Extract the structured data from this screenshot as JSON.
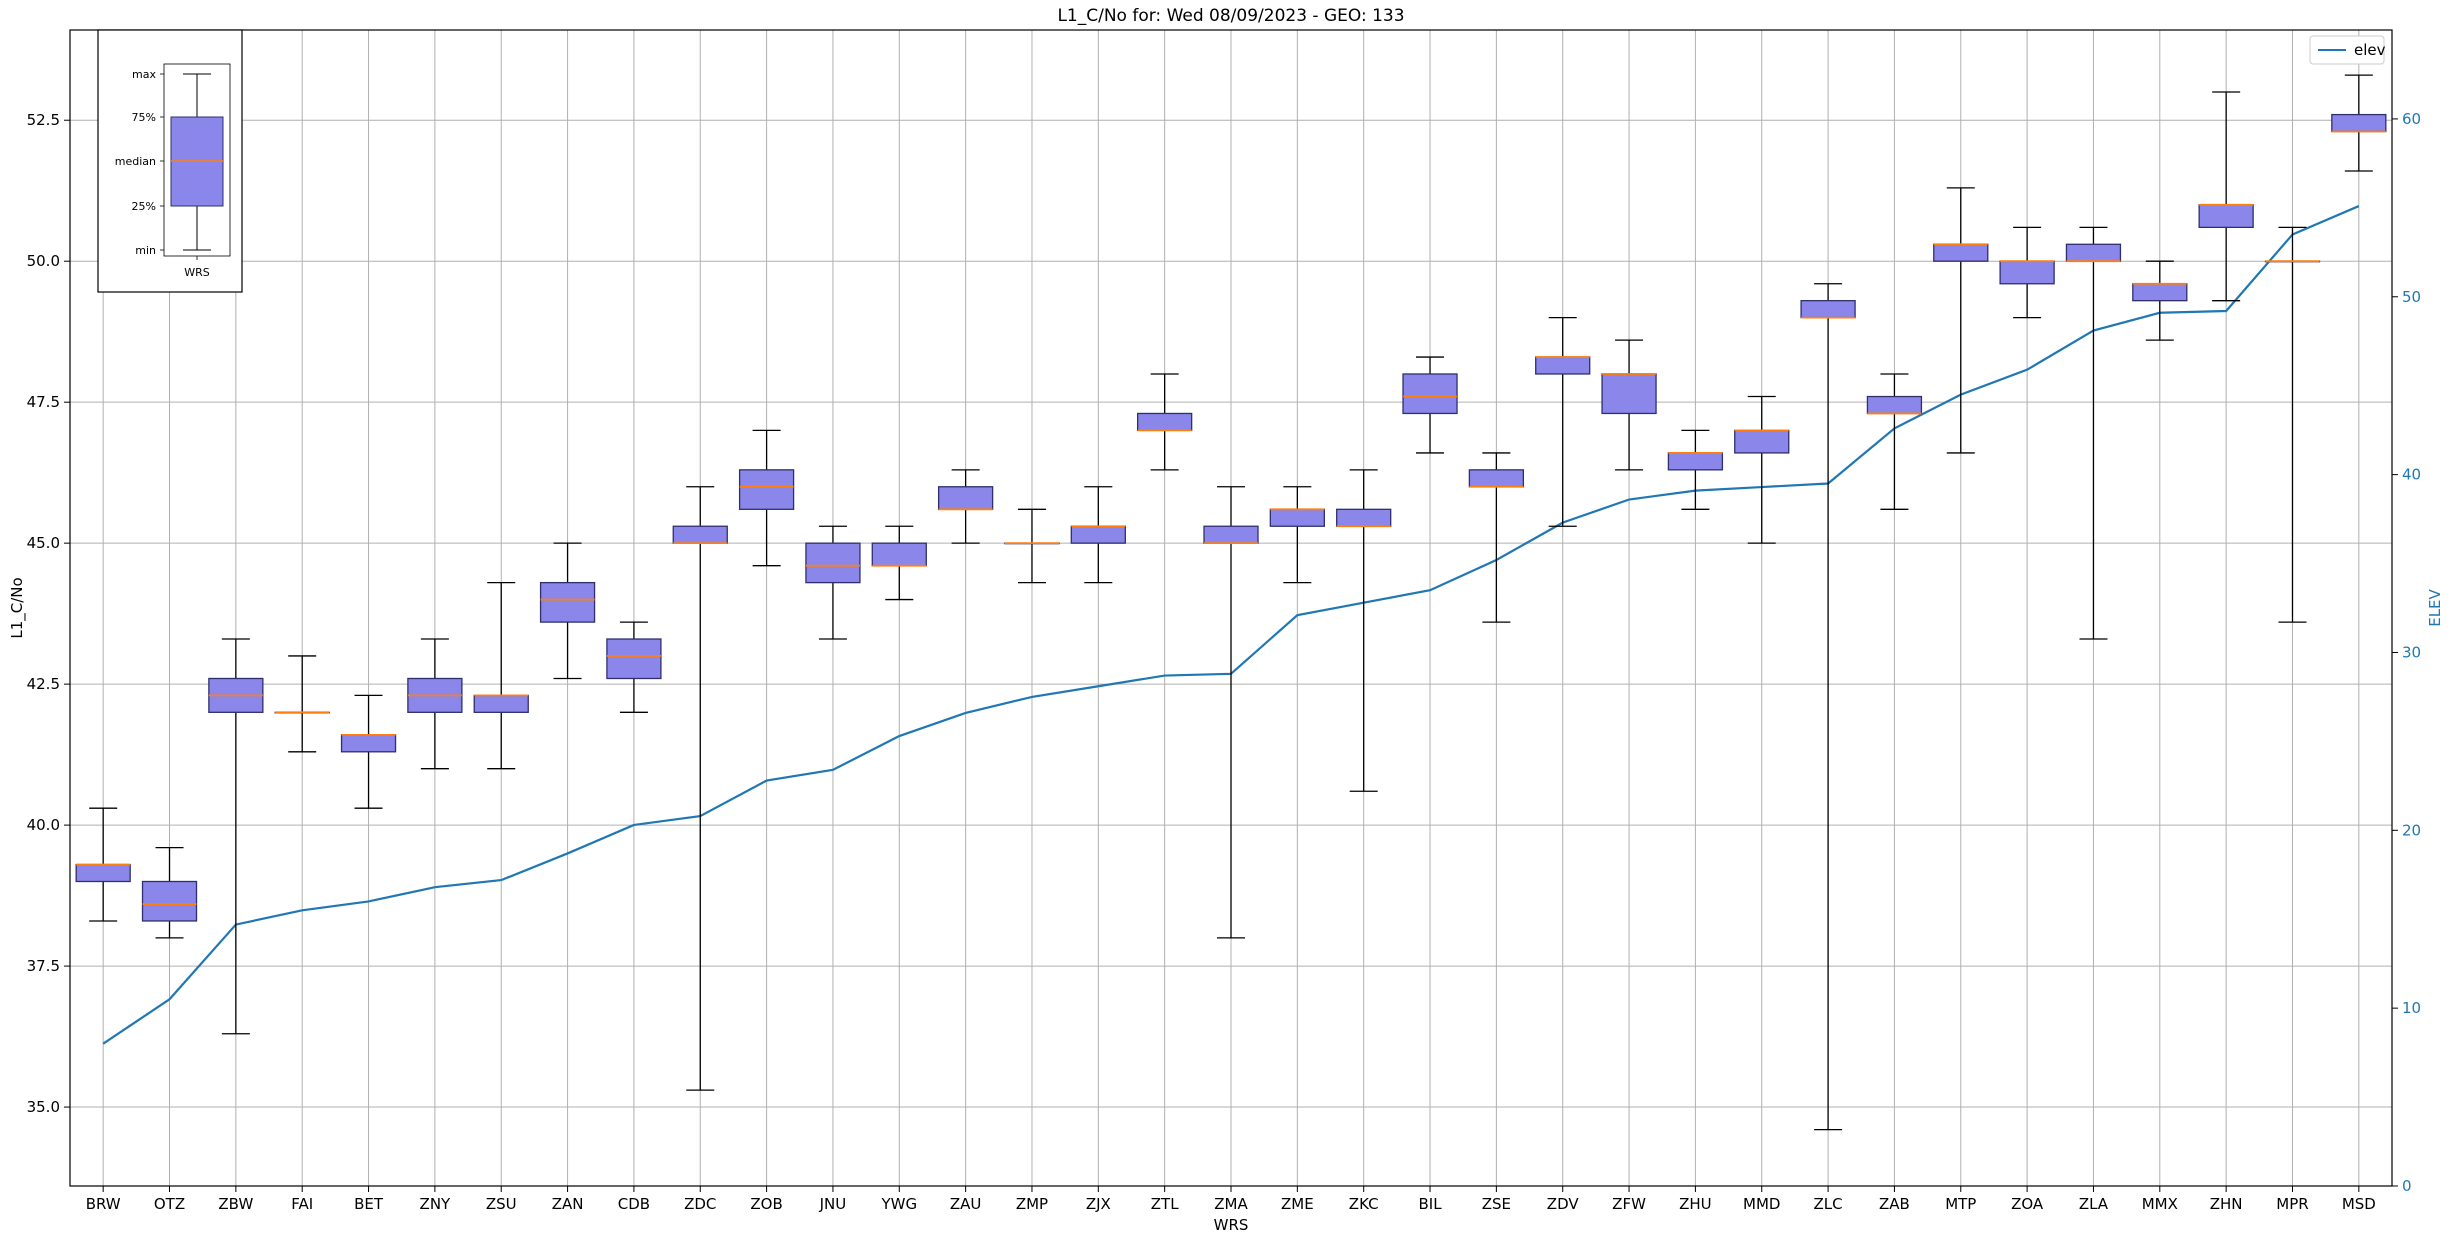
{
  "chart_data": {
    "type": "box",
    "title": "L1_C/No for: Wed 08/09/2023 - GEO: 133",
    "xlabel": "WRS",
    "ylabel": "L1_C/No",
    "y2label": "ELEV",
    "ylim": [
      33.6,
      54.1
    ],
    "y2lim": [
      0,
      65
    ],
    "yticks": [
      35.0,
      37.5,
      40.0,
      42.5,
      45.0,
      47.5,
      50.0,
      52.5
    ],
    "yticklabels": [
      "35.0",
      "37.5",
      "40.0",
      "42.5",
      "45.0",
      "47.5",
      "50.0",
      "52.5"
    ],
    "y2ticks": [
      0,
      10,
      20,
      30,
      40,
      50,
      60
    ],
    "y2ticklabels": [
      "0",
      "10",
      "20",
      "30",
      "40",
      "50",
      "60"
    ],
    "grid": true,
    "legend": {
      "position": "top-right",
      "entries": [
        "elev"
      ]
    },
    "colors": {
      "box_fill": "#8a86ea",
      "box_edge": "#2f2f6e",
      "median": "#ff7f0e",
      "elev_line": "#1f77b4",
      "grid": "#b0b0b0"
    },
    "categories": [
      "BRW",
      "OTZ",
      "ZBW",
      "FAI",
      "BET",
      "ZNY",
      "ZSU",
      "ZAN",
      "CDB",
      "ZDC",
      "ZOB",
      "JNU",
      "YWG",
      "ZAU",
      "ZMP",
      "ZJX",
      "ZTL",
      "ZMA",
      "ZME",
      "ZKC",
      "BIL",
      "ZSE",
      "ZDV",
      "ZFW",
      "ZHU",
      "MMD",
      "ZLC",
      "ZAB",
      "MTP",
      "ZOA",
      "ZLA",
      "MMX",
      "ZHN",
      "MPR",
      "MSD"
    ],
    "boxes": [
      {
        "min": 38.3,
        "q1": 39.0,
        "median": 39.3,
        "q3": 39.3,
        "max": 40.3
      },
      {
        "min": 38.0,
        "q1": 38.3,
        "median": 38.6,
        "q3": 39.0,
        "max": 39.6
      },
      {
        "min": 36.3,
        "q1": 42.0,
        "median": 42.3,
        "q3": 42.6,
        "max": 43.3
      },
      {
        "min": 41.3,
        "q1": 42.0,
        "median": 42.0,
        "q3": 42.0,
        "max": 43.0
      },
      {
        "min": 40.3,
        "q1": 41.3,
        "median": 41.6,
        "q3": 41.6,
        "max": 42.3
      },
      {
        "min": 41.0,
        "q1": 42.0,
        "median": 42.3,
        "q3": 42.6,
        "max": 43.3
      },
      {
        "min": 41.0,
        "q1": 42.0,
        "median": 42.3,
        "q3": 42.3,
        "max": 44.3
      },
      {
        "min": 42.6,
        "q1": 43.6,
        "median": 44.0,
        "q3": 44.3,
        "max": 45.0
      },
      {
        "min": 42.0,
        "q1": 42.6,
        "median": 43.0,
        "q3": 43.3,
        "max": 43.6
      },
      {
        "min": 35.3,
        "q1": 45.0,
        "median": 45.0,
        "q3": 45.3,
        "max": 46.0
      },
      {
        "min": 44.6,
        "q1": 45.6,
        "median": 46.0,
        "q3": 46.3,
        "max": 47.0
      },
      {
        "min": 43.3,
        "q1": 44.3,
        "median": 44.6,
        "q3": 45.0,
        "max": 45.3
      },
      {
        "min": 44.0,
        "q1": 44.6,
        "median": 44.6,
        "q3": 45.0,
        "max": 45.3
      },
      {
        "min": 45.0,
        "q1": 45.6,
        "median": 45.6,
        "q3": 46.0,
        "max": 46.3
      },
      {
        "min": 44.3,
        "q1": 45.0,
        "median": 45.0,
        "q3": 45.0,
        "max": 45.6
      },
      {
        "min": 44.3,
        "q1": 45.0,
        "median": 45.3,
        "q3": 45.3,
        "max": 46.0
      },
      {
        "min": 46.3,
        "q1": 47.0,
        "median": 47.0,
        "q3": 47.3,
        "max": 48.0
      },
      {
        "min": 38.0,
        "q1": 45.0,
        "median": 45.0,
        "q3": 45.3,
        "max": 46.0
      },
      {
        "min": 44.3,
        "q1": 45.3,
        "median": 45.6,
        "q3": 45.6,
        "max": 46.0
      },
      {
        "min": 40.6,
        "q1": 45.3,
        "median": 45.3,
        "q3": 45.6,
        "max": 46.3
      },
      {
        "min": 46.6,
        "q1": 47.3,
        "median": 47.6,
        "q3": 48.0,
        "max": 48.3
      },
      {
        "min": 43.6,
        "q1": 46.0,
        "median": 46.0,
        "q3": 46.3,
        "max": 46.6
      },
      {
        "min": 45.3,
        "q1": 48.0,
        "median": 48.3,
        "q3": 48.3,
        "max": 49.0
      },
      {
        "min": 46.3,
        "q1": 47.3,
        "median": 48.0,
        "q3": 48.0,
        "max": 48.6
      },
      {
        "min": 45.6,
        "q1": 46.3,
        "median": 46.6,
        "q3": 46.6,
        "max": 47.0
      },
      {
        "min": 45.0,
        "q1": 46.6,
        "median": 47.0,
        "q3": 47.0,
        "max": 47.6
      },
      {
        "min": 34.6,
        "q1": 49.0,
        "median": 49.0,
        "q3": 49.3,
        "max": 49.6
      },
      {
        "min": 45.6,
        "q1": 47.3,
        "median": 47.3,
        "q3": 47.6,
        "max": 48.0
      },
      {
        "min": 46.6,
        "q1": 50.0,
        "median": 50.3,
        "q3": 50.3,
        "max": 51.3
      },
      {
        "min": 49.0,
        "q1": 49.6,
        "median": 50.0,
        "q3": 50.0,
        "max": 50.6
      },
      {
        "min": 43.3,
        "q1": 50.0,
        "median": 50.0,
        "q3": 50.3,
        "max": 50.6
      },
      {
        "min": 48.6,
        "q1": 49.3,
        "median": 49.6,
        "q3": 49.6,
        "max": 50.0
      },
      {
        "min": 49.3,
        "q1": 50.6,
        "median": 51.0,
        "q3": 51.0,
        "max": 53.0
      },
      {
        "min": 43.6,
        "q1": 50.0,
        "median": 50.0,
        "q3": 50.0,
        "max": 50.6
      },
      {
        "min": 51.6,
        "q1": 52.3,
        "median": 52.3,
        "q3": 52.6,
        "max": 53.3
      }
    ],
    "series": [
      {
        "name": "elev",
        "axis": "right",
        "values": [
          8.0,
          10.5,
          14.7,
          15.5,
          16.0,
          16.8,
          17.2,
          18.7,
          20.3,
          20.8,
          22.8,
          23.4,
          25.3,
          26.6,
          27.5,
          28.1,
          28.7,
          28.8,
          32.1,
          32.8,
          33.5,
          35.2,
          37.3,
          38.6,
          39.1,
          39.3,
          39.5,
          42.6,
          44.5,
          45.9,
          48.1,
          49.1,
          49.2,
          53.5,
          55.1
        ]
      }
    ],
    "inset": {
      "category_label": "WRS",
      "labels": [
        "max",
        "75%",
        "median",
        "25%",
        "min"
      ]
    }
  }
}
